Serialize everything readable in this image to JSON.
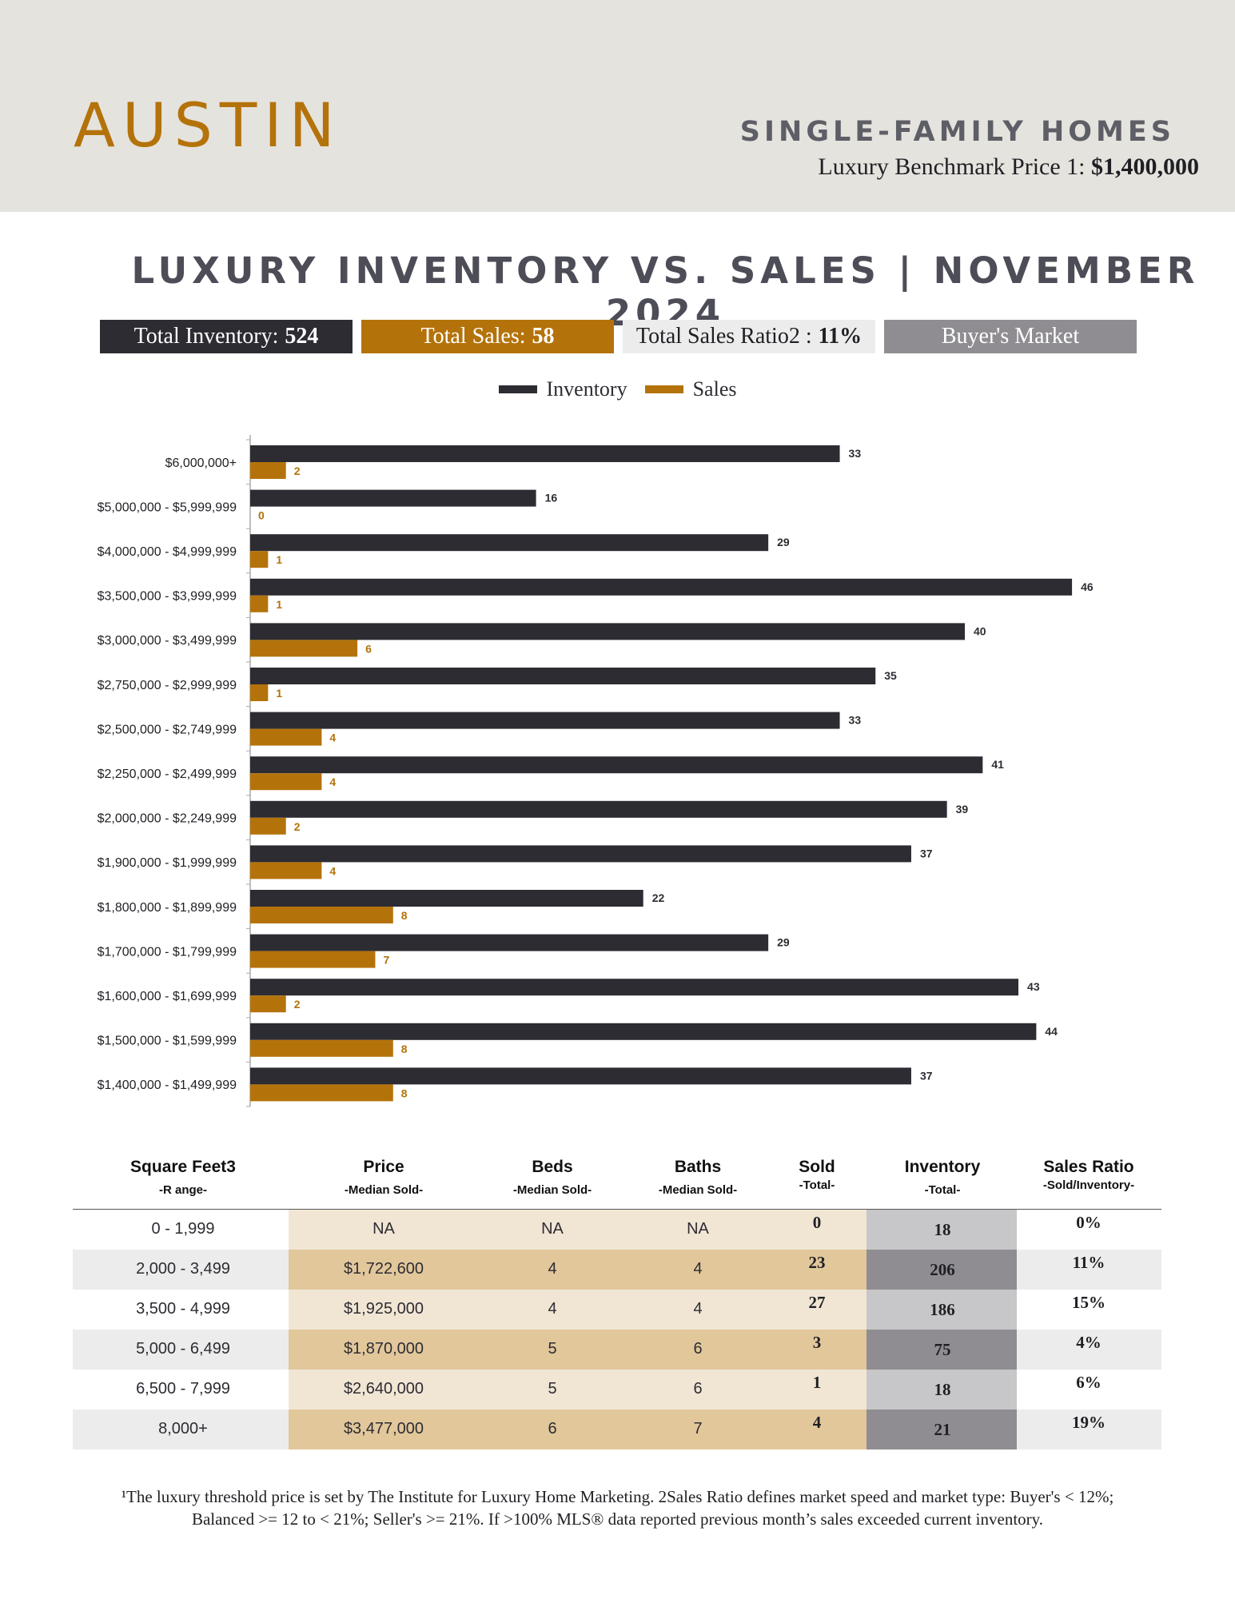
{
  "header": {
    "city": "AUSTIN",
    "category": "SINGLE-FAMILY HOMES",
    "benchmark_label": "Luxury Benchmark Price 1:",
    "benchmark_value": "$1,400,000"
  },
  "title": "LUXURY INVENTORY VS. SALES | NOVEMBER 2024",
  "stats": {
    "inventory_label": "Total Inventory:",
    "inventory_value": "524",
    "sales_label": "Total Sales:",
    "sales_value": "58",
    "ratio_label": "Total Sales Ratio2 :",
    "ratio_value": "11%",
    "market": "Buyer's Market"
  },
  "colors": {
    "inventory": "#2d2c33",
    "sales": "#b4730a"
  },
  "chart_data": {
    "type": "bar",
    "orientation": "horizontal",
    "legend_placement": "top-center",
    "categories": [
      "$6,000,000+",
      "$5,000,000 - $5,999,999",
      "$4,000,000 - $4,999,999",
      "$3,500,000 - $3,999,999",
      "$3,000,000 - $3,499,999",
      "$2,750,000 - $2,999,999",
      "$2,500,000 - $2,749,999",
      "$2,250,000 - $2,499,999",
      "$2,000,000 - $2,249,999",
      "$1,900,000 - $1,999,999",
      "$1,800,000 - $1,899,999",
      "$1,700,000 - $1,799,999",
      "$1,600,000 - $1,699,999",
      "$1,500,000 - $1,599,999",
      "$1,400,000 - $1,499,999"
    ],
    "series": [
      {
        "name": "Inventory",
        "values": [
          33,
          16,
          29,
          46,
          40,
          35,
          33,
          41,
          39,
          37,
          22,
          29,
          43,
          44,
          37
        ]
      },
      {
        "name": "Sales",
        "values": [
          2,
          0,
          1,
          1,
          6,
          1,
          4,
          4,
          2,
          4,
          8,
          7,
          2,
          8,
          8
        ]
      }
    ],
    "xlim": [
      0,
      50
    ]
  },
  "table": {
    "headers": [
      {
        "title": "Square Feet3",
        "sub": "-R ange-"
      },
      {
        "title": "Price",
        "sub": "-Median Sold-"
      },
      {
        "title": "Beds",
        "sub": "-Median Sold-"
      },
      {
        "title": "Baths",
        "sub": "-Median Sold-"
      },
      {
        "title": "Sold",
        "sub": "-Total-"
      },
      {
        "title": "Inventory",
        "sub": "-Total-"
      },
      {
        "title": "Sales Ratio",
        "sub": "-Sold/Inventory-"
      }
    ],
    "rows": [
      [
        "0 - 1,999",
        "NA",
        "NA",
        "NA",
        "0",
        "18",
        "0%"
      ],
      [
        "2,000 - 3,499",
        "$1,722,600",
        "4",
        "4",
        "23",
        "206",
        "11%"
      ],
      [
        "3,500 - 4,999",
        "$1,925,000",
        "4",
        "4",
        "27",
        "186",
        "15%"
      ],
      [
        "5,000 - 6,499",
        "$1,870,000",
        "5",
        "6",
        "3",
        "75",
        "4%"
      ],
      [
        "6,500 - 7,999",
        "$2,640,000",
        "5",
        "6",
        "1",
        "18",
        "6%"
      ],
      [
        "8,000+",
        "$3,477,000",
        "6",
        "7",
        "4",
        "21",
        "19%"
      ]
    ]
  },
  "footnote": {
    "line1": "¹The luxury threshold price is set by The Institute for Luxury Home Marketing. 2Sales Ratio defines market speed and market type: Buyer's < 12%;",
    "line2": "Balanced >= 12 to < 21%; Seller's >= 21%. If >100% MLS® data reported previous month’s sales exceeded current inventory."
  }
}
